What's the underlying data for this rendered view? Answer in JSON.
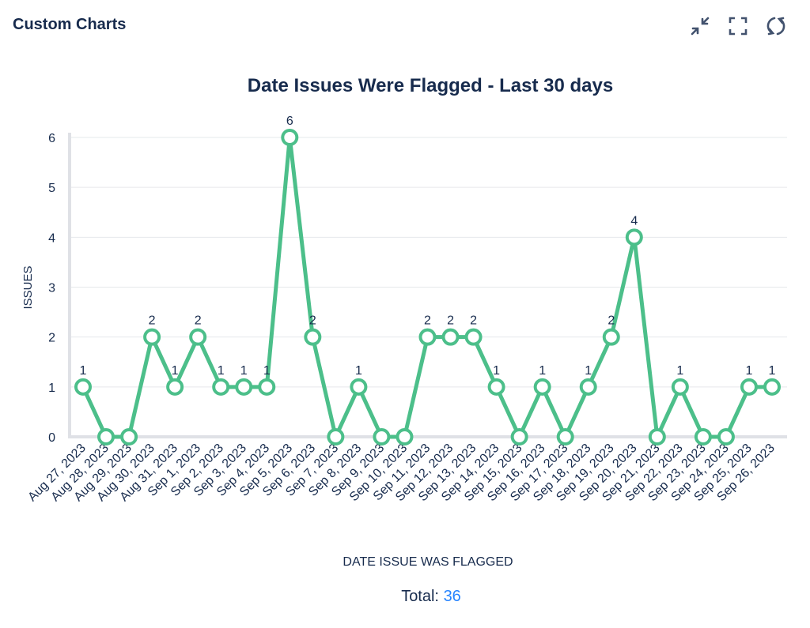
{
  "header": {
    "title": "Custom Charts",
    "icons": [
      "minimize-icon",
      "fullscreen-icon",
      "refresh-icon"
    ]
  },
  "chart_data": {
    "type": "line",
    "title": "Date Issues Were Flagged - Last 30 days",
    "xlabel": "DATE ISSUE WAS FLAGGED",
    "ylabel": "ISSUES",
    "ylim": [
      0,
      6
    ],
    "yticks": [
      "0",
      "1",
      "2",
      "3",
      "4",
      "5",
      "6"
    ],
    "grid": true,
    "color": "#4cbf8a",
    "categories": [
      "Aug 27, 2023",
      "Aug 28, 2023",
      "Aug 29, 2023",
      "Aug 30, 2023",
      "Aug 31, 2023",
      "Sep 1, 2023",
      "Sep 2, 2023",
      "Sep 3, 2023",
      "Sep 4, 2023",
      "Sep 5, 2023",
      "Sep 6, 2023",
      "Sep 7, 2023",
      "Sep 8, 2023",
      "Sep 9, 2023",
      "Sep 10, 2023",
      "Sep 11, 2023",
      "Sep 12, 2023",
      "Sep 13, 2023",
      "Sep 14, 2023",
      "Sep 15, 2023",
      "Sep 16, 2023",
      "Sep 17, 2023",
      "Sep 18, 2023",
      "Sep 19, 2023",
      "Sep 20, 2023",
      "Sep 21, 2023",
      "Sep 22, 2023",
      "Sep 23, 2023",
      "Sep 24, 2023",
      "Sep 25, 2023",
      "Sep 26, 2023"
    ],
    "values": [
      1,
      0,
      0,
      2,
      1,
      2,
      1,
      1,
      1,
      6,
      2,
      0,
      1,
      0,
      0,
      2,
      2,
      2,
      1,
      0,
      1,
      0,
      1,
      2,
      4,
      0,
      1,
      0,
      0,
      1,
      1
    ]
  },
  "footer": {
    "total_label": "Total:",
    "total_value": "36"
  }
}
